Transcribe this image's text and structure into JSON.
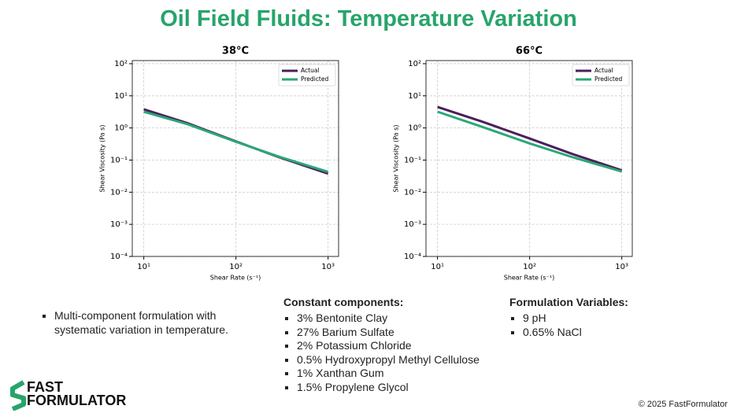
{
  "title": "Oil Field Fluids: Temperature Variation",
  "chart_data": [
    {
      "type": "line",
      "title": "38°C",
      "x_label": "Shear Rate (s⁻¹)",
      "y_label": "Shear Viscosity (Pa s)",
      "x": [
        10,
        30,
        100,
        300,
        1000
      ],
      "log_x": true,
      "log_y": true,
      "grid": true,
      "legend": "upper right",
      "series": [
        {
          "name": "Actual",
          "color": "#4b1f5e",
          "values": [
            3.8,
            1.4,
            0.38,
            0.12,
            0.038
          ]
        },
        {
          "name": "Predicted",
          "color": "#2aa876",
          "values": [
            3.2,
            1.3,
            0.37,
            0.125,
            0.043
          ]
        }
      ],
      "xlim": [
        7.5,
        1300
      ],
      "ylim": [
        0.0001,
        125
      ],
      "xticks": [
        {
          "value": 10,
          "label": "10¹"
        },
        {
          "value": 100,
          "label": "10²"
        },
        {
          "value": 1000,
          "label": "10³"
        }
      ],
      "yticks": [
        {
          "value": 0.0001,
          "label": "10⁻⁴"
        },
        {
          "value": 0.001,
          "label": "10⁻³"
        },
        {
          "value": 0.01,
          "label": "10⁻²"
        },
        {
          "value": 0.1,
          "label": "10⁻¹"
        },
        {
          "value": 1,
          "label": "10⁰"
        },
        {
          "value": 10,
          "label": "10¹"
        },
        {
          "value": 100,
          "label": "10²"
        }
      ]
    },
    {
      "type": "line",
      "title": "66°C",
      "x_label": "Shear Rate (s⁻¹)",
      "y_label": "Shear Viscosity (Pa s)",
      "x": [
        10,
        30,
        100,
        300,
        1000
      ],
      "log_x": true,
      "log_y": true,
      "grid": true,
      "legend": "upper right",
      "series": [
        {
          "name": "Actual",
          "color": "#4b1f5e",
          "values": [
            4.5,
            1.6,
            0.47,
            0.15,
            0.048
          ]
        },
        {
          "name": "Predicted",
          "color": "#2aa876",
          "values": [
            3.2,
            1.1,
            0.33,
            0.12,
            0.044
          ]
        }
      ],
      "xlim": [
        7.5,
        1300
      ],
      "ylim": [
        0.0001,
        125
      ],
      "xticks": [
        {
          "value": 10,
          "label": "10¹"
        },
        {
          "value": 100,
          "label": "10²"
        },
        {
          "value": 1000,
          "label": "10³"
        }
      ],
      "yticks": [
        {
          "value": 0.0001,
          "label": "10⁻⁴"
        },
        {
          "value": 0.001,
          "label": "10⁻³"
        },
        {
          "value": 0.01,
          "label": "10⁻²"
        },
        {
          "value": 0.1,
          "label": "10⁻¹"
        },
        {
          "value": 1,
          "label": "10⁰"
        },
        {
          "value": 10,
          "label": "10¹"
        },
        {
          "value": 100,
          "label": "10²"
        }
      ]
    }
  ],
  "bullets": [
    "Multi-component formulation with systematic variation in temperature."
  ],
  "constant_components": {
    "heading": "Constant components:",
    "items": [
      "3% Bentonite Clay",
      "27% Barium Sulfate",
      "2% Potassium Chloride",
      "0.5% Hydroxypropyl Methyl Cellulose",
      "1% Xanthan Gum",
      "1.5% Propylene Glycol"
    ]
  },
  "formulation_variables": {
    "heading": "Formulation Variables:",
    "items": [
      "9 pH",
      "0.65% NaCl"
    ]
  },
  "logo": {
    "line1": "FAST",
    "line2": "FORMULATOR"
  },
  "footer": "© 2025 FastFormulator"
}
